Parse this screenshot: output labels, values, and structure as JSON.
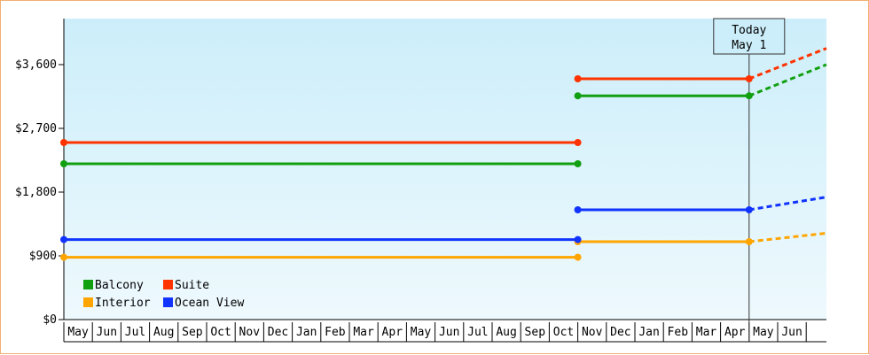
{
  "chart_data": {
    "type": "line",
    "title": "",
    "xlabel": "",
    "ylabel": "",
    "ylim": [
      0,
      4250
    ],
    "y_ticks": [
      0,
      900,
      1800,
      2700,
      3600
    ],
    "y_tick_labels": [
      "$0",
      "$900",
      "$1,800",
      "$2,700",
      "$3,600"
    ],
    "x_range": [
      "2023-05-01",
      "2025-08-01"
    ],
    "months": [
      "May",
      "Jun",
      "Jul",
      "Aug",
      "Sep",
      "Oct",
      "Nov",
      "Dec",
      "Jan",
      "Feb",
      "Mar",
      "Apr",
      "May",
      "Jun",
      "Jul",
      "Aug",
      "Sep",
      "Oct",
      "Nov",
      "Dec",
      "Jan",
      "Feb",
      "Mar",
      "Apr",
      "May",
      "Jun"
    ],
    "today": {
      "date": "2025-05-01",
      "label_line1": "Today",
      "label_line2": "May 1"
    },
    "grid": false,
    "legend_position": "bottom-left",
    "background": {
      "top": "#cceefa",
      "bottom": "#eef9fd"
    },
    "series": [
      {
        "name": "Balcony",
        "color": "#11a011",
        "segments": [
          {
            "x": [
              "2023-05-01",
              "2024-11-01"
            ],
            "y": [
              2200,
              2200
            ]
          },
          {
            "x": [
              "2024-11-01",
              "2025-05-01"
            ],
            "y": [
              3160,
              3160
            ]
          }
        ],
        "projection": {
          "x": [
            "2025-05-01",
            "2025-08-01"
          ],
          "y": [
            3160,
            3600
          ]
        }
      },
      {
        "name": "Suite",
        "color": "#ff3300",
        "segments": [
          {
            "x": [
              "2023-05-01",
              "2024-11-01"
            ],
            "y": [
              2500,
              2500
            ]
          },
          {
            "x": [
              "2024-11-01",
              "2025-05-01"
            ],
            "y": [
              3400,
              3400
            ]
          }
        ],
        "projection": {
          "x": [
            "2025-05-01",
            "2025-08-01"
          ],
          "y": [
            3400,
            3830
          ]
        }
      },
      {
        "name": "Interior",
        "color": "#ffa500",
        "segments": [
          {
            "x": [
              "2023-05-01",
              "2024-11-01"
            ],
            "y": [
              880,
              880
            ]
          },
          {
            "x": [
              "2024-11-01",
              "2025-05-01"
            ],
            "y": [
              1100,
              1100
            ]
          }
        ],
        "projection": {
          "x": [
            "2025-05-01",
            "2025-08-01"
          ],
          "y": [
            1100,
            1220
          ]
        }
      },
      {
        "name": "Ocean View",
        "color": "#1133ff",
        "segments": [
          {
            "x": [
              "2023-05-01",
              "2024-11-01"
            ],
            "y": [
              1130,
              1130
            ]
          },
          {
            "x": [
              "2024-11-01",
              "2025-05-01"
            ],
            "y": [
              1550,
              1550
            ]
          }
        ],
        "projection": {
          "x": [
            "2025-05-01",
            "2025-08-01"
          ],
          "y": [
            1550,
            1730
          ]
        }
      }
    ]
  }
}
